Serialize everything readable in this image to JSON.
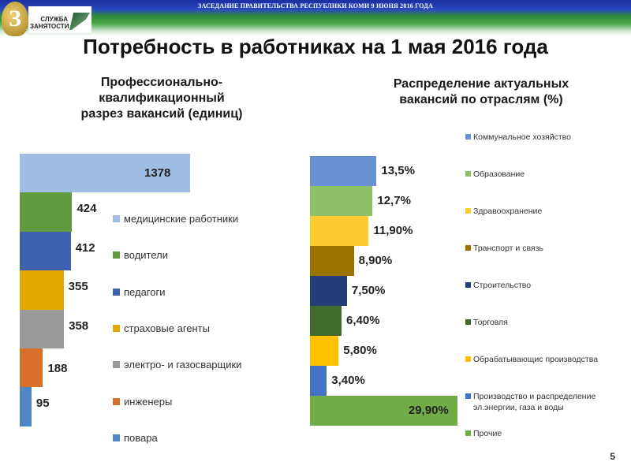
{
  "header": {
    "banner": "ЗАСЕДАНИЕ ПРАВИТЕЛЬСТВА РЕСПУБЛИКИ КОМИ 9 ИЮНЯ 2016 ГОДА",
    "logo_text": "СЛУЖБА\nЗАНЯТОСТИ"
  },
  "title": "Потребность в работниках на 1 мая 2016 года",
  "page_number": "5",
  "chart_data": [
    {
      "type": "bar",
      "orientation": "horizontal",
      "title": "Профессионально-\nквалификационный\nразрез вакансий (единиц)",
      "categories": [
        "медицинские работники",
        "водители",
        "педагоги",
        "страховые агенты",
        "электро- и газосварщики",
        "инженеры",
        "повара"
      ],
      "values": [
        1378,
        424,
        412,
        355,
        358,
        188,
        95
      ],
      "labels": [
        "1378",
        "424",
        "412",
        "355",
        "358",
        "188",
        "95"
      ],
      "colors": [
        "#9dbde3",
        "#5f9b3c",
        "#3d63b0",
        "#e2a900",
        "#9a9a9a",
        "#d86f2a",
        "#4f87c4"
      ],
      "legend": "right"
    },
    {
      "type": "bar",
      "orientation": "horizontal",
      "title": "Распределение актуальных\nвакансий по отраслям (%)",
      "categories": [
        "Коммунальное хозяйство",
        "Образование",
        "Здравоохранение",
        "Транспорт и связь",
        "Строительство",
        "Торговля",
        "Обрабатывающис производства",
        "Производство и распределение\nэл.энергии, газа и воды",
        "Прочие"
      ],
      "values": [
        13.5,
        12.7,
        11.9,
        8.9,
        7.5,
        6.4,
        5.8,
        3.4,
        29.9
      ],
      "labels": [
        "13,5%",
        "12,7%",
        "11,90%",
        "8,90%",
        "7,50%",
        "6,40%",
        "5,80%",
        "3,40%",
        "29,90%"
      ],
      "colors": [
        "#6a8fd2",
        "#8cc168",
        "#ffcb33",
        "#9a7200",
        "#223f78",
        "#3f6b2c",
        "#ffc000",
        "#4472c4",
        "#70ad47"
      ],
      "legend": "right"
    }
  ]
}
